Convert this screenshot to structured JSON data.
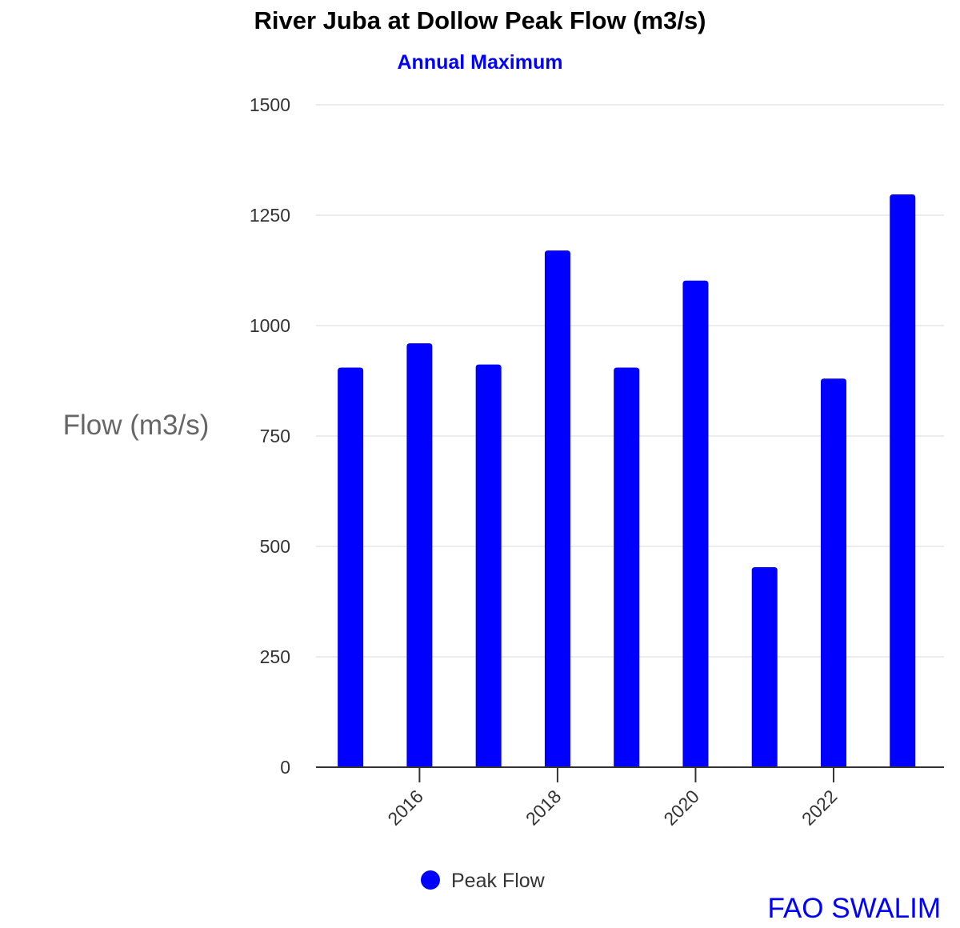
{
  "chart_data": {
    "type": "bar",
    "title": "River Juba at Dollow Peak Flow (m3/s)",
    "subtitle": "Annual Maximum",
    "ylabel": "Flow (m3/s)",
    "xlabel": "",
    "x": [
      2015,
      2016,
      2017,
      2018,
      2019,
      2020,
      2021,
      2022,
      2023
    ],
    "x_ticks": [
      "2016",
      "2018",
      "2020",
      "2022"
    ],
    "x_tick_values": [
      2016,
      2018,
      2020,
      2022
    ],
    "xlim": [
      2014.5,
      2023.6
    ],
    "y_ticks": [
      "0",
      "250",
      "500",
      "750",
      "1000",
      "1250",
      "1500"
    ],
    "ylim": [
      0,
      1500
    ],
    "series": [
      {
        "name": "Peak Flow",
        "color": "#0000ff",
        "values": [
          905,
          960,
          912,
          1170,
          905,
          1102,
          453,
          880,
          1297
        ]
      }
    ],
    "legend": "bottom",
    "grid": true,
    "credit": "FAO SWALIM",
    "colors": {
      "subtitle": "#0000ff",
      "credit": "#0000ff",
      "grid": "#e6e6e6",
      "axis": "#333333",
      "tick_label": "#333333",
      "ylabel": "#666666"
    }
  }
}
